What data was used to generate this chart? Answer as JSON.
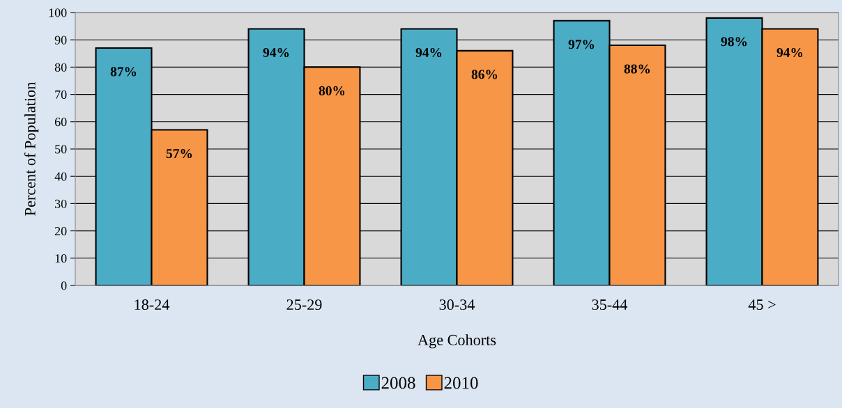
{
  "chart_data": {
    "type": "bar",
    "xlabel": "Age Cohorts",
    "ylabel": "Percent of Population",
    "categories": [
      "18-24",
      "25-29",
      "30-34",
      "35-44",
      "45 >"
    ],
    "series": [
      {
        "name": "2008",
        "color": "#4bacc6",
        "values": [
          87,
          94,
          94,
          97,
          98
        ],
        "value_labels": [
          "87%",
          "94%",
          "94%",
          "97%",
          "98%"
        ]
      },
      {
        "name": "2010",
        "color": "#f79646",
        "values": [
          57,
          80,
          86,
          88,
          94
        ],
        "value_labels": [
          "57%",
          "80%",
          "86%",
          "88%",
          "94%"
        ]
      }
    ],
    "ylim": [
      0,
      100
    ],
    "yticks": [
      0,
      10,
      20,
      30,
      40,
      50,
      60,
      70,
      80,
      90,
      100
    ],
    "grid": "y",
    "legend": "bottom"
  }
}
